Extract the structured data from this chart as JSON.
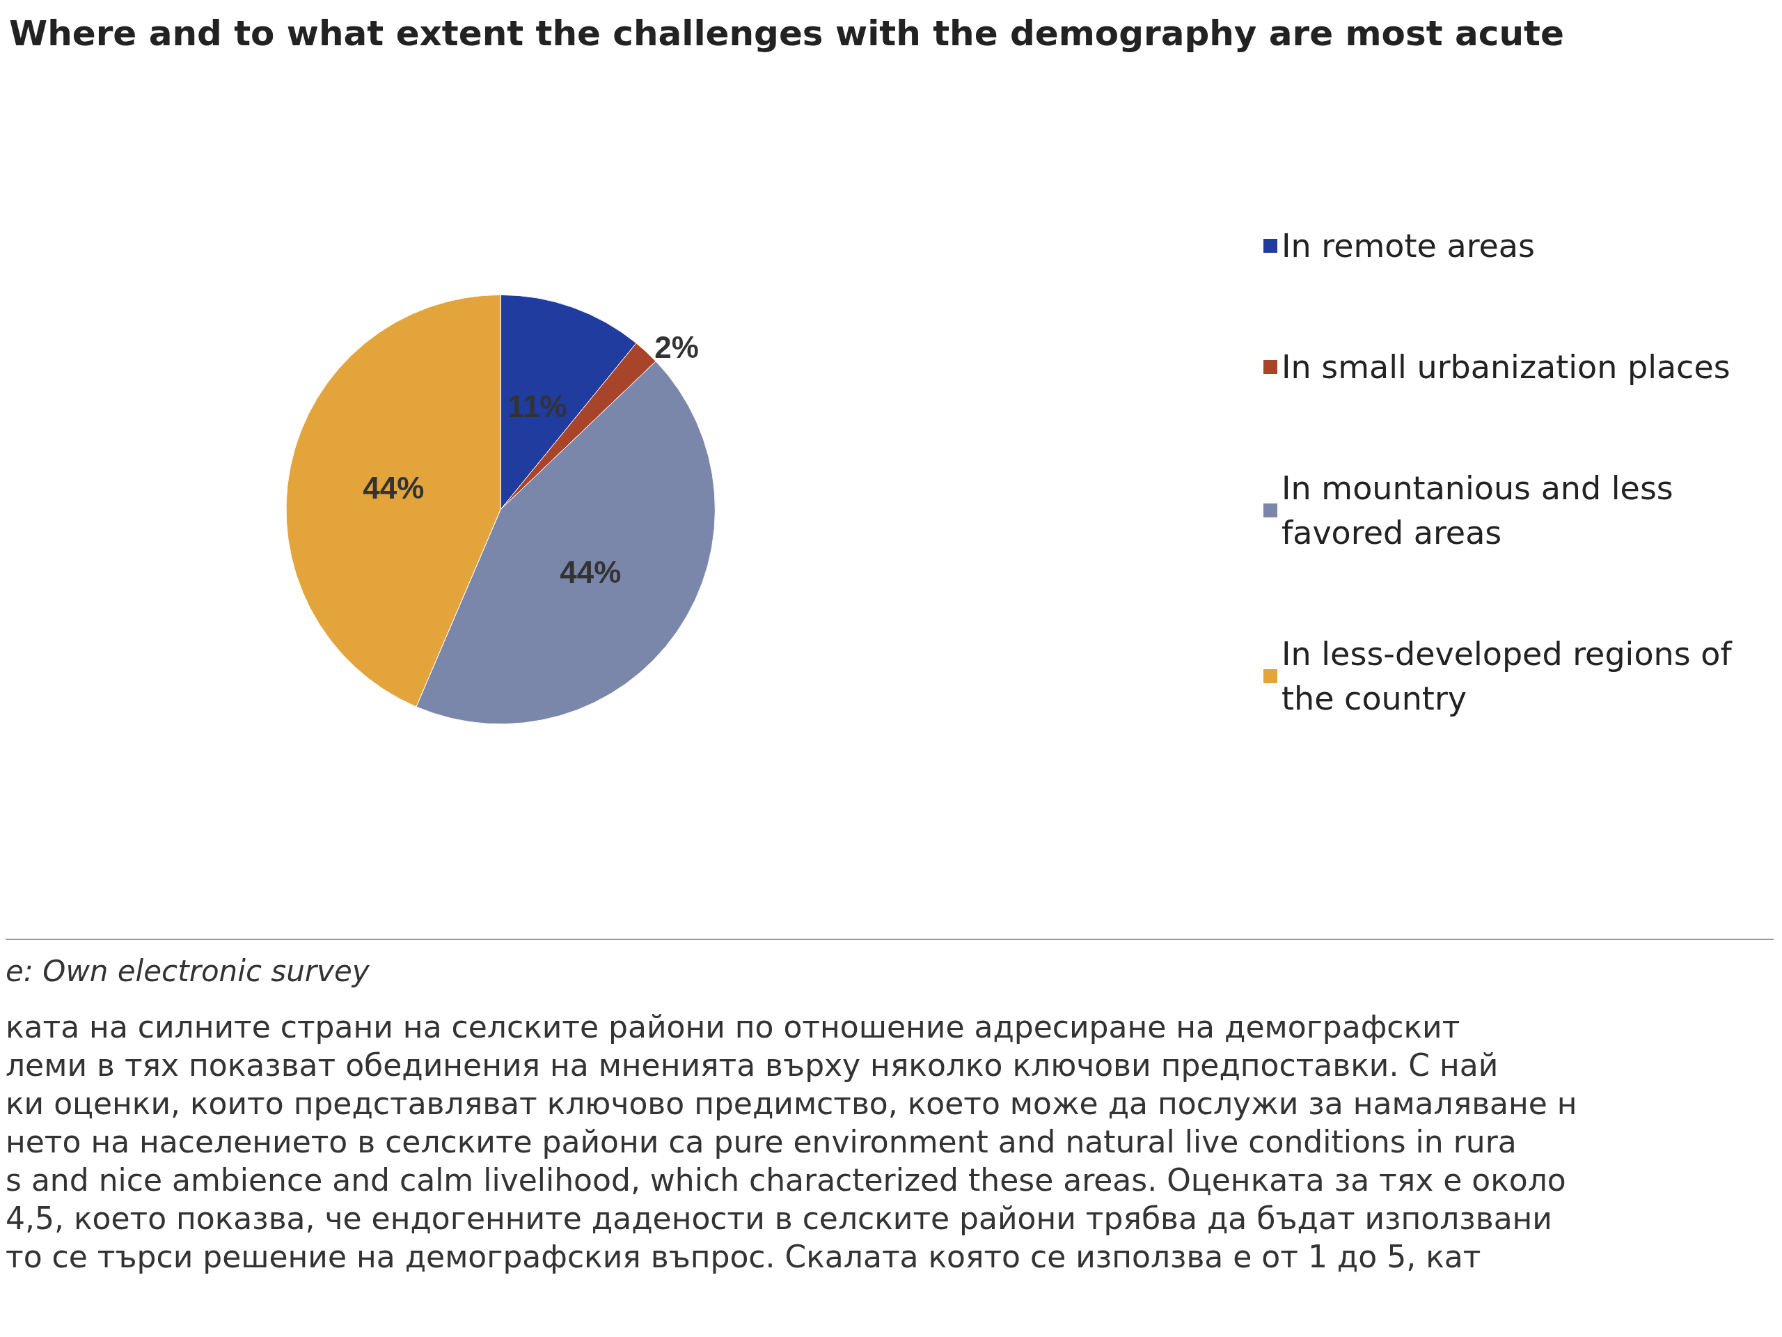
{
  "chart_data": {
    "type": "pie",
    "title": "Where and to what extent the challenges with the demography are most acute",
    "categories": [
      "In remote areas",
      "In small urbanization places",
      "In mountanious and less favored areas",
      "In less-developed regions of the country"
    ],
    "values": [
      11,
      2,
      44,
      44
    ],
    "value_labels": [
      "11%",
      "2%",
      "44%",
      "44%"
    ],
    "colors": [
      "#1f3c9e",
      "#a8442a",
      "#7a86aa",
      "#e3a43c"
    ],
    "legend": "right",
    "annotations": [
      "e: Own electronic survey",
      "ката на силните страни на селските райони по отношение адресиране на демографскит",
      "леми в тях показват обединения на мненията върху няколко ключови предпоставки. С най",
      "ки оценки, които представляват ключово предимство, което може да послужи за намаляване н",
      "нето на населението в селските райони са pure environment and natural live conditions in rura",
      "s and nice ambience and calm livelihood, which characterized these areas. Оценката за тях е около",
      "4,5, което показва, че ендогенните дадености в селските райони трябва да бъдат използвани",
      "то се търси решение на демографския въпрос. Скалата която се използва е от 1 до 5, кат"
    ]
  }
}
